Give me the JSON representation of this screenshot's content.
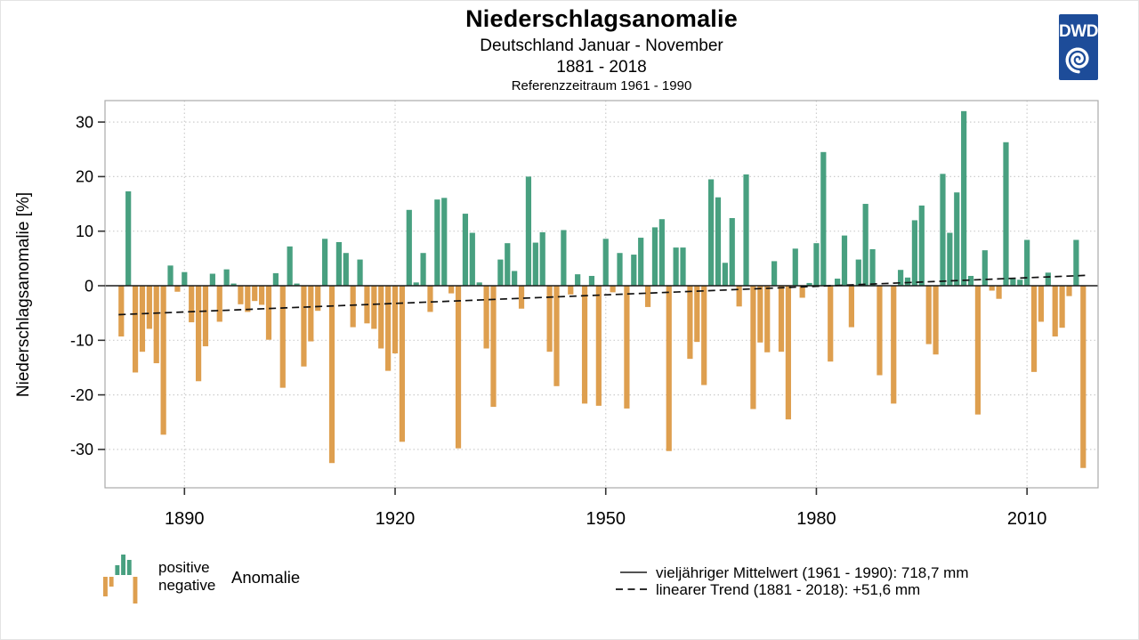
{
  "header": {
    "title": "Niederschlagsanomalie",
    "subtitle1": "Deutschland Januar - November",
    "subtitle2": "1881 - 2018",
    "subtitle3": "Referenzzeitraum 1961 - 1990"
  },
  "logo": {
    "text": "DWD"
  },
  "y_axis": {
    "label": "Niederschlagsanomalie [%]",
    "tick_labels": [
      "30",
      "20",
      "10",
      "0",
      "-10",
      "-20",
      "-30"
    ],
    "tick_values": [
      30,
      20,
      10,
      0,
      -10,
      -20,
      -30
    ]
  },
  "x_axis": {
    "tick_labels": [
      "1890",
      "1920",
      "1950",
      "1980",
      "2010"
    ],
    "tick_values": [
      1890,
      1920,
      1950,
      1980,
      2010
    ]
  },
  "legend": {
    "positive_label": "positive",
    "negative_label": "negative",
    "anomalie_label": "Anomalie",
    "mean_line_label": "vieljähriger Mittelwert (1961 - 1990): 718,7 mm",
    "trend_line_label": "linearer Trend (1881 - 2018): +51,6 mm"
  },
  "colors": {
    "positive": "#48a080",
    "negative": "#de9f4f",
    "mean_line": "#1a1a1a",
    "trend_line": "#111111",
    "grid": "#cdcdcd",
    "frame": "#ababab",
    "tick": "#333333",
    "text": "#000000",
    "logo_blue": "#1d4c99"
  },
  "chart_data": {
    "type": "bar",
    "title": "Niederschlagsanomalie",
    "subtitle": "Deutschland Januar - November 1881 - 2018",
    "reference_period": "1961 - 1990",
    "ylabel": "Niederschlagsanomalie [%]",
    "ylim": [
      -37,
      34
    ],
    "grid": true,
    "mean_value_mm": "718,7",
    "linear_trend_mm": "+51,6",
    "start_year": 1881,
    "end_year": 2018,
    "trend_line": {
      "start_year": 1881,
      "start_value": -5.3,
      "end_year": 2018,
      "end_value": 1.9
    },
    "values": [
      -9.3,
      17.3,
      -15.9,
      -12.1,
      -7.9,
      -14.2,
      -27.3,
      3.7,
      -1.1,
      2.5,
      -6.7,
      -17.5,
      -11.1,
      2.2,
      -6.6,
      3.0,
      0.4,
      -3.4,
      -4.8,
      -2.8,
      -3.5,
      -9.9,
      2.3,
      -18.7,
      7.2,
      0.4,
      -14.8,
      -10.2,
      -4.6,
      8.6,
      -32.5,
      8.0,
      6.0,
      -7.6,
      4.8,
      -6.9,
      -7.9,
      -11.5,
      -15.6,
      -12.4,
      -28.6,
      13.9,
      0.6,
      6.0,
      -4.8,
      15.8,
      16.1,
      -1.4,
      -29.8,
      13.2,
      9.7,
      0.6,
      -11.5,
      -22.2,
      4.8,
      7.8,
      2.7,
      -4.2,
      20.0,
      7.9,
      9.8,
      -12.1,
      -18.4,
      10.2,
      -1.6,
      2.1,
      -21.6,
      1.8,
      -22.0,
      8.6,
      -1.2,
      6.0,
      -22.5,
      5.7,
      8.8,
      -3.9,
      10.7,
      12.2,
      -30.3,
      7.0,
      7.0,
      -13.4,
      -10.3,
      -18.2,
      19.5,
      16.2,
      4.2,
      12.4,
      -3.8,
      20.4,
      -22.6,
      -10.4,
      -12.2,
      4.5,
      -12.1,
      -24.5,
      6.8,
      -2.2,
      0.5,
      7.8,
      24.5,
      -13.9,
      1.3,
      9.2,
      -7.6,
      4.8,
      15.0,
      6.7,
      -16.4,
      0.0,
      -21.6,
      2.9,
      1.5,
      12.0,
      14.7,
      -10.7,
      -12.6,
      20.5,
      9.7,
      17.1,
      32.0,
      1.8,
      -23.6,
      6.5,
      -0.9,
      -2.4,
      26.3,
      1.3,
      1.1,
      8.4,
      -15.8,
      -6.6,
      2.4,
      -9.3,
      -7.7,
      -1.9,
      8.4,
      -33.4
    ],
    "legend_icon_bars": [
      {
        "height": -22,
        "type": "negative"
      },
      {
        "height": -11,
        "type": "negative"
      },
      {
        "height": 11,
        "type": "positive"
      },
      {
        "height": 23,
        "type": "positive"
      },
      {
        "height": 17,
        "type": "positive"
      },
      {
        "height": -30,
        "type": "negative"
      }
    ]
  }
}
